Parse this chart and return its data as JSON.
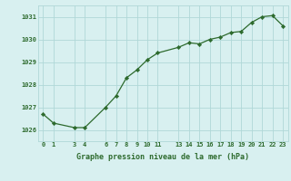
{
  "x": [
    0,
    1,
    3,
    4,
    6,
    7,
    8,
    9,
    10,
    11,
    13,
    14,
    15,
    16,
    17,
    18,
    19,
    20,
    21,
    22,
    23
  ],
  "y": [
    1026.7,
    1026.3,
    1026.1,
    1026.1,
    1027.0,
    1027.5,
    1028.3,
    1028.65,
    1029.1,
    1029.4,
    1029.65,
    1029.85,
    1029.8,
    1030.0,
    1030.1,
    1030.3,
    1030.35,
    1030.75,
    1031.0,
    1031.05,
    1030.6
  ],
  "xticks": [
    0,
    1,
    3,
    4,
    6,
    7,
    8,
    9,
    10,
    11,
    13,
    14,
    15,
    16,
    17,
    18,
    19,
    20,
    21,
    22,
    23
  ],
  "yticks": [
    1026,
    1027,
    1028,
    1029,
    1030,
    1031
  ],
  "ylim": [
    1025.5,
    1031.5
  ],
  "xlim": [
    -0.5,
    23.5
  ],
  "line_color": "#2d6a2d",
  "marker_color": "#2d6a2d",
  "bg_color": "#d8f0f0",
  "grid_color": "#b0d8d8",
  "xlabel": "Graphe pression niveau de la mer (hPa)",
  "xlabel_color": "#2d6a2d"
}
